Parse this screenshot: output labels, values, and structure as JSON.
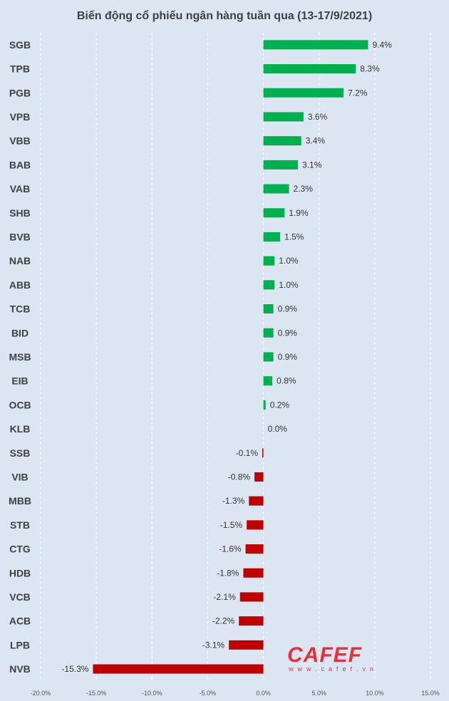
{
  "chart_data": {
    "type": "bar",
    "orientation": "horizontal",
    "title": "Biến động cổ phiếu ngân hàng tuần qua (13-17/9/2021)",
    "xlabel": "",
    "ylabel": "",
    "xlim": [
      -20,
      15
    ],
    "x_ticks": [
      -20,
      -15,
      -10,
      -5,
      0,
      5,
      10,
      15
    ],
    "x_tick_labels": [
      "-20.0%",
      "-15.0%",
      "-10.0%",
      "-5.0%",
      "0.0%",
      "5.0%",
      "10.0%",
      "15.0%"
    ],
    "grid": true,
    "categories": [
      "SGB",
      "TPB",
      "PGB",
      "VPB",
      "VBB",
      "BAB",
      "VAB",
      "SHB",
      "BVB",
      "NAB",
      "ABB",
      "TCB",
      "BID",
      "MSB",
      "EIB",
      "OCB",
      "KLB",
      "SSB",
      "VIB",
      "MBB",
      "STB",
      "CTG",
      "HDB",
      "VCB",
      "ACB",
      "LPB",
      "NVB"
    ],
    "values": [
      9.4,
      8.3,
      7.2,
      3.6,
      3.4,
      3.1,
      2.3,
      1.9,
      1.5,
      1.0,
      1.0,
      0.9,
      0.9,
      0.9,
      0.8,
      0.2,
      0.0,
      -0.1,
      -0.8,
      -1.3,
      -1.5,
      -1.6,
      -1.8,
      -2.1,
      -2.2,
      -3.1,
      -15.3
    ],
    "labels": [
      "9.4%",
      "8.3%",
      "7.2%",
      "3.6%",
      "3.4%",
      "3.1%",
      "2.3%",
      "1.9%",
      "1.5%",
      "1.0%",
      "1.0%",
      "0.9%",
      "0.9%",
      "0.9%",
      "0.8%",
      "0.2%",
      "0.0%",
      "-0.1%",
      "-0.8%",
      "-1.3%",
      "-1.5%",
      "-1.6%",
      "-1.8%",
      "-2.1%",
      "-2.2%",
      "-3.1%",
      "-15.3%"
    ],
    "colors": {
      "positive": "#00b050",
      "negative": "#c00000",
      "background": "#dce6f2"
    }
  },
  "watermark": {
    "brand": "CAFEF",
    "url": "www.cafef.vn"
  }
}
